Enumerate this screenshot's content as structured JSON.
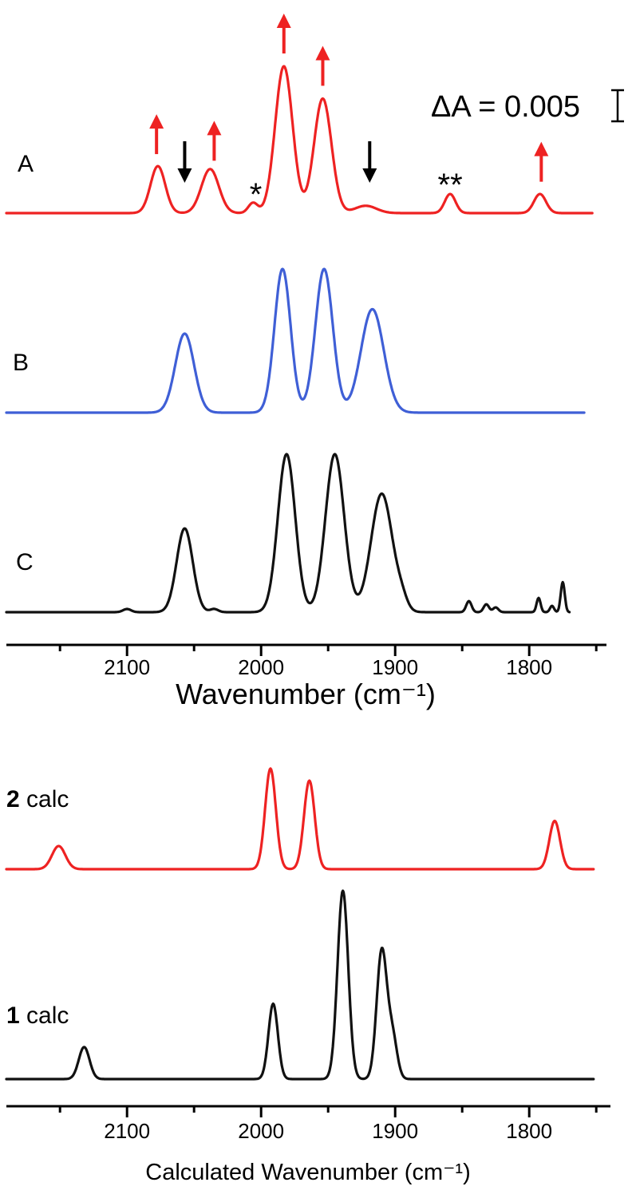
{
  "chart_data": [
    {
      "type": "line",
      "panel": "experimental",
      "xlabel": "Wavenumber (cm⁻¹)",
      "xlim": [
        2190,
        1750
      ],
      "x_ticks": [
        2100,
        2000,
        1900,
        1800
      ],
      "x_tick_labels": [
        "2100",
        "2000",
        "1900",
        "1800"
      ],
      "scale_bar": "ΔA = 0.005",
      "series": [
        {
          "name": "A",
          "color": "#ee2222",
          "x_range": [
            2190,
            1753
          ],
          "peaks": [
            {
              "x": 2077,
              "height": 0.32,
              "width": 5.5
            },
            {
              "x": 2038,
              "height": 0.3,
              "width": 6.5
            },
            {
              "x": 2006,
              "height": 0.07,
              "width": 3.5
            },
            {
              "x": 1983,
              "height": 1.0,
              "width": 6.5
            },
            {
              "x": 1954,
              "height": 0.78,
              "width": 6.5
            },
            {
              "x": 1922,
              "height": 0.05,
              "width": 8
            },
            {
              "x": 1859,
              "height": 0.13,
              "width": 4
            },
            {
              "x": 1792,
              "height": 0.13,
              "width": 4.5
            }
          ],
          "annotations": [
            {
              "x": 2078,
              "kind": "arrow-up",
              "color": "#ee2222"
            },
            {
              "x": 2057,
              "kind": "arrow-down",
              "color": "#000000"
            },
            {
              "x": 2035,
              "kind": "arrow-up",
              "color": "#ee2222"
            },
            {
              "x": 2004,
              "kind": "text",
              "text": "*"
            },
            {
              "x": 1983,
              "kind": "arrow-up",
              "color": "#ee2222"
            },
            {
              "x": 1954,
              "kind": "arrow-up",
              "color": "#ee2222"
            },
            {
              "x": 1919,
              "kind": "arrow-down",
              "color": "#000000"
            },
            {
              "x": 1859,
              "kind": "text",
              "text": "**"
            },
            {
              "x": 1791,
              "kind": "arrow-up",
              "color": "#ee2222"
            }
          ]
        },
        {
          "name": "B",
          "color": "#3f5fd6",
          "x_range": [
            2190,
            1759
          ],
          "peaks": [
            {
              "x": 2057,
              "height": 0.55,
              "width": 7
            },
            {
              "x": 1984,
              "height": 1.0,
              "width": 6
            },
            {
              "x": 1953,
              "height": 1.0,
              "width": 6.5
            },
            {
              "x": 1917,
              "height": 0.72,
              "width": 8.5
            }
          ]
        },
        {
          "name": "C",
          "color": "#111111",
          "x_range": [
            2190,
            1770
          ],
          "peaks": [
            {
              "x": 2100,
              "height": 0.02,
              "width": 3
            },
            {
              "x": 2057,
              "height": 0.53,
              "width": 6
            },
            {
              "x": 2035,
              "height": 0.02,
              "width": 3
            },
            {
              "x": 1981,
              "height": 1.0,
              "width": 6.5
            },
            {
              "x": 1945,
              "height": 1.0,
              "width": 7
            },
            {
              "x": 1910,
              "height": 0.75,
              "width": 8
            },
            {
              "x": 1895,
              "height": 0.06,
              "width": 4
            },
            {
              "x": 1845,
              "height": 0.07,
              "width": 2
            },
            {
              "x": 1832,
              "height": 0.05,
              "width": 2
            },
            {
              "x": 1825,
              "height": 0.03,
              "width": 2
            },
            {
              "x": 1793,
              "height": 0.09,
              "width": 1.5
            },
            {
              "x": 1783,
              "height": 0.04,
              "width": 1.5
            },
            {
              "x": 1775,
              "height": 0.19,
              "width": 1.5
            }
          ]
        }
      ]
    },
    {
      "type": "line",
      "panel": "calculated",
      "xlabel": "Calculated Wavenumber (cm⁻¹)",
      "xlim": [
        2190,
        1750
      ],
      "x_ticks": [
        2100,
        2000,
        1900,
        1800
      ],
      "x_tick_labels": [
        "2100",
        "2000",
        "1900",
        "1800"
      ],
      "series": [
        {
          "name_number": "2",
          "name_suffix": " calc",
          "color": "#ee2222",
          "x_range": [
            2190,
            1752
          ],
          "peaks": [
            {
              "x": 2151,
              "height": 0.23,
              "width": 5
            },
            {
              "x": 1993,
              "height": 1.0,
              "width": 4
            },
            {
              "x": 1964,
              "height": 0.88,
              "width": 4
            },
            {
              "x": 1781,
              "height": 0.48,
              "width": 4
            }
          ]
        },
        {
          "name_number": "1",
          "name_suffix": " calc",
          "color": "#111111",
          "x_range": [
            2190,
            1752
          ],
          "peaks": [
            {
              "x": 2132,
              "height": 0.17,
              "width": 4
            },
            {
              "x": 1991,
              "height": 0.4,
              "width": 3.5
            },
            {
              "x": 1939,
              "height": 1.0,
              "width": 4
            },
            {
              "x": 1910,
              "height": 0.68,
              "width": 3.8
            },
            {
              "x": 1902,
              "height": 0.22,
              "width": 3.5
            }
          ]
        }
      ]
    }
  ]
}
